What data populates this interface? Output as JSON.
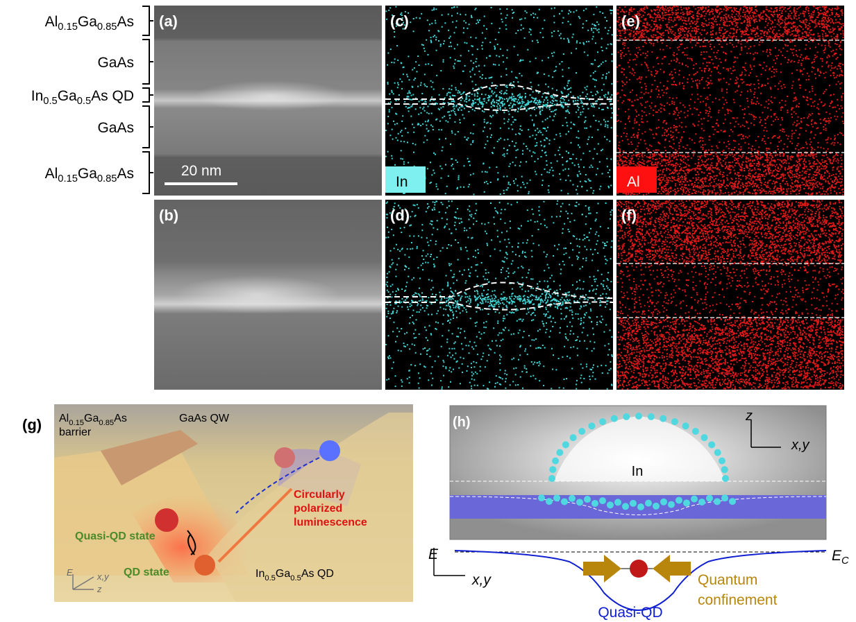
{
  "layers": [
    [
      "Al",
      "0.15",
      "Ga",
      "0.85",
      "As"
    ],
    [
      "GaAs"
    ],
    [
      "In",
      "0.5",
      "Ga",
      "0.5",
      "As QD"
    ],
    [
      "GaAs"
    ],
    [
      "Al",
      "0.15",
      "Ga",
      "0.85",
      "As"
    ]
  ],
  "panels": {
    "a": "(a)",
    "b": "(b)",
    "c": "(c)",
    "d": "(d)",
    "e": "(e)",
    "f": "(f)",
    "g": "(g)",
    "h": "(h)"
  },
  "scale_bar": "20 nm",
  "map_labels": {
    "in": "In",
    "al": "Al"
  },
  "g": {
    "barrier": [
      "Al",
      "0.15",
      "Ga",
      "0.85",
      "As"
    ],
    "barrier_word": "barrier",
    "qw": "GaAs QW",
    "quasi": "Quasi-QD state",
    "qd": "QD state",
    "lum": [
      "Circularly",
      "polarized",
      "luminescence"
    ],
    "qd_mat": [
      "In",
      "0.5",
      "Ga",
      "0.5",
      "As QD"
    ],
    "ax_e": "E",
    "ax_xy": "x,y",
    "ax_z": "z"
  },
  "h": {
    "in": "In",
    "z": "z",
    "xy": "x,y",
    "e": "E",
    "xy2": "x,y",
    "ec": [
      "E",
      "C"
    ],
    "quasi": "Quasi-QD",
    "conf": [
      "Quantum",
      "confinement"
    ]
  }
}
